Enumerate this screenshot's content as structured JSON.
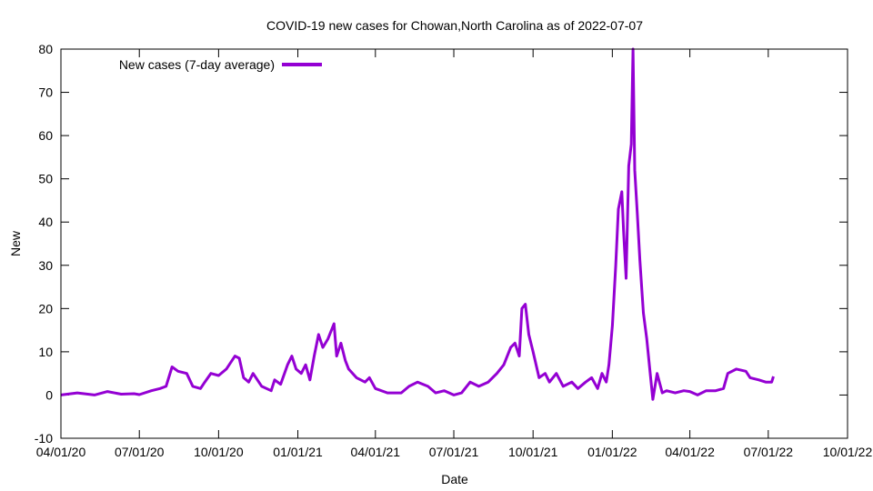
{
  "chart_data": {
    "type": "line",
    "title": "COVID-19 new cases for Chowan,North Carolina as of 2022-07-07",
    "xlabel": "Date",
    "ylabel": "New",
    "ylim": [
      -10,
      80
    ],
    "yticks": [
      "-10",
      "0",
      "10",
      "20",
      "30",
      "40",
      "50",
      "60",
      "70",
      "80"
    ],
    "xlim": [
      "2020-04-01",
      "2022-10-01"
    ],
    "xticks": [
      {
        "date": "2020-04-01",
        "label": "04/01/20"
      },
      {
        "date": "2020-07-01",
        "label": "07/01/20"
      },
      {
        "date": "2020-10-01",
        "label": "10/01/20"
      },
      {
        "date": "2021-01-01",
        "label": "01/01/21"
      },
      {
        "date": "2021-04-01",
        "label": "04/01/21"
      },
      {
        "date": "2021-07-01",
        "label": "07/01/21"
      },
      {
        "date": "2021-10-01",
        "label": "10/01/21"
      },
      {
        "date": "2022-01-01",
        "label": "01/01/22"
      },
      {
        "date": "2022-04-01",
        "label": "04/01/22"
      },
      {
        "date": "2022-07-01",
        "label": "07/01/22"
      },
      {
        "date": "2022-10-01",
        "label": "10/01/22"
      }
    ],
    "grid": false,
    "legend_position": "top-left",
    "series": [
      {
        "name": "New cases (7-day average)",
        "color": "#9400d3",
        "points": [
          [
            "2020-04-01",
            0
          ],
          [
            "2020-04-20",
            0.5
          ],
          [
            "2020-05-10",
            0
          ],
          [
            "2020-05-25",
            0.8
          ],
          [
            "2020-06-10",
            0.2
          ],
          [
            "2020-06-25",
            0.3
          ],
          [
            "2020-07-01",
            0.1
          ],
          [
            "2020-07-15",
            1
          ],
          [
            "2020-07-25",
            1.5
          ],
          [
            "2020-08-01",
            2
          ],
          [
            "2020-08-08",
            6.5
          ],
          [
            "2020-08-15",
            5.5
          ],
          [
            "2020-08-25",
            5
          ],
          [
            "2020-09-01",
            2
          ],
          [
            "2020-09-10",
            1.5
          ],
          [
            "2020-09-15",
            3
          ],
          [
            "2020-09-22",
            5
          ],
          [
            "2020-10-01",
            4.5
          ],
          [
            "2020-10-10",
            6
          ],
          [
            "2020-10-20",
            9
          ],
          [
            "2020-10-25",
            8.5
          ],
          [
            "2020-10-30",
            4
          ],
          [
            "2020-11-05",
            3
          ],
          [
            "2020-11-10",
            5
          ],
          [
            "2020-11-20",
            2
          ],
          [
            "2020-12-01",
            1
          ],
          [
            "2020-12-05",
            3.5
          ],
          [
            "2020-12-12",
            2.5
          ],
          [
            "2020-12-20",
            7
          ],
          [
            "2020-12-25",
            9
          ],
          [
            "2020-12-30",
            6
          ],
          [
            "2021-01-05",
            5
          ],
          [
            "2021-01-10",
            7
          ],
          [
            "2021-01-15",
            3.5
          ],
          [
            "2021-01-20",
            9
          ],
          [
            "2021-01-25",
            14
          ],
          [
            "2021-01-30",
            11
          ],
          [
            "2021-02-05",
            13
          ],
          [
            "2021-02-12",
            16.5
          ],
          [
            "2021-02-15",
            9
          ],
          [
            "2021-02-20",
            12
          ],
          [
            "2021-02-25",
            8
          ],
          [
            "2021-03-01",
            6
          ],
          [
            "2021-03-10",
            4
          ],
          [
            "2021-03-20",
            3
          ],
          [
            "2021-03-25",
            4
          ],
          [
            "2021-04-01",
            1.5
          ],
          [
            "2021-04-15",
            0.5
          ],
          [
            "2021-05-01",
            0.5
          ],
          [
            "2021-05-10",
            2
          ],
          [
            "2021-05-20",
            3
          ],
          [
            "2021-06-01",
            2
          ],
          [
            "2021-06-10",
            0.5
          ],
          [
            "2021-06-20",
            1
          ],
          [
            "2021-07-01",
            0
          ],
          [
            "2021-07-10",
            0.5
          ],
          [
            "2021-07-20",
            3
          ],
          [
            "2021-07-30",
            2
          ],
          [
            "2021-08-10",
            3
          ],
          [
            "2021-08-20",
            5
          ],
          [
            "2021-08-28",
            7
          ],
          [
            "2021-09-05",
            11
          ],
          [
            "2021-09-10",
            12
          ],
          [
            "2021-09-15",
            9
          ],
          [
            "2021-09-18",
            20
          ],
          [
            "2021-09-22",
            21
          ],
          [
            "2021-09-26",
            14
          ],
          [
            "2021-10-01",
            10
          ],
          [
            "2021-10-08",
            4
          ],
          [
            "2021-10-15",
            5
          ],
          [
            "2021-10-20",
            3
          ],
          [
            "2021-10-28",
            5
          ],
          [
            "2021-11-05",
            2
          ],
          [
            "2021-11-15",
            3
          ],
          [
            "2021-11-22",
            1.5
          ],
          [
            "2021-12-01",
            3
          ],
          [
            "2021-12-08",
            4
          ],
          [
            "2021-12-15",
            1.5
          ],
          [
            "2021-12-20",
            5
          ],
          [
            "2021-12-25",
            3
          ],
          [
            "2021-12-28",
            7
          ],
          [
            "2022-01-01",
            16
          ],
          [
            "2022-01-05",
            30
          ],
          [
            "2022-01-08",
            43
          ],
          [
            "2022-01-12",
            47
          ],
          [
            "2022-01-14",
            38
          ],
          [
            "2022-01-17",
            27
          ],
          [
            "2022-01-20",
            53
          ],
          [
            "2022-01-23",
            58
          ],
          [
            "2022-01-25",
            80
          ],
          [
            "2022-01-27",
            52
          ],
          [
            "2022-01-30",
            42
          ],
          [
            "2022-02-02",
            31
          ],
          [
            "2022-02-06",
            19
          ],
          [
            "2022-02-10",
            13
          ],
          [
            "2022-02-14",
            5
          ],
          [
            "2022-02-17",
            -1
          ],
          [
            "2022-02-22",
            5
          ],
          [
            "2022-02-28",
            0.5
          ],
          [
            "2022-03-05",
            1
          ],
          [
            "2022-03-15",
            0.5
          ],
          [
            "2022-03-25",
            1
          ],
          [
            "2022-04-01",
            0.8
          ],
          [
            "2022-04-10",
            0
          ],
          [
            "2022-04-20",
            1
          ],
          [
            "2022-05-01",
            1
          ],
          [
            "2022-05-10",
            1.5
          ],
          [
            "2022-05-15",
            5
          ],
          [
            "2022-05-25",
            6
          ],
          [
            "2022-06-05",
            5.5
          ],
          [
            "2022-06-10",
            4
          ],
          [
            "2022-06-20",
            3.5
          ],
          [
            "2022-06-28",
            3
          ],
          [
            "2022-07-05",
            3
          ],
          [
            "2022-07-07",
            4.3
          ]
        ]
      }
    ]
  }
}
